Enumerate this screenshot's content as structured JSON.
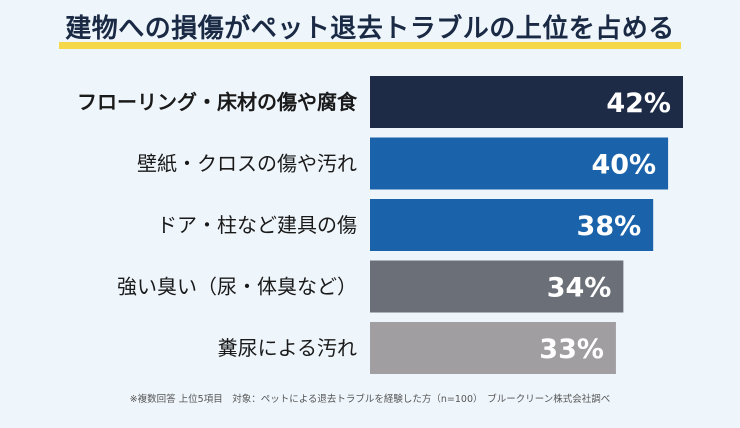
{
  "title": "建物への損傷がペット退去トラブルの上位を占める",
  "footnote": "※複数回答 上位5項目　対象：ペットによる退去トラブルを経験した方（n=100）　ブルークリーン株式会社調べ",
  "chart_data": {
    "type": "bar",
    "orientation": "horizontal",
    "categories": [
      "フローリング・床材の傷や腐食",
      "壁紙・クロスの傷や汚れ",
      "ドア・柱など建具の傷",
      "強い臭い（尿・体臭など）",
      "糞尿による汚れ"
    ],
    "values": [
      42,
      40,
      38,
      34,
      33
    ],
    "value_labels": [
      "42%",
      "40%",
      "38%",
      "34%",
      "33%"
    ],
    "unit": "%",
    "bar_colors": [
      "#1e2b47",
      "#1a63aa",
      "#1a63aa",
      "#6b7078",
      "#a09ea1"
    ],
    "highlight_first": true,
    "grid": false,
    "legend": "none"
  }
}
